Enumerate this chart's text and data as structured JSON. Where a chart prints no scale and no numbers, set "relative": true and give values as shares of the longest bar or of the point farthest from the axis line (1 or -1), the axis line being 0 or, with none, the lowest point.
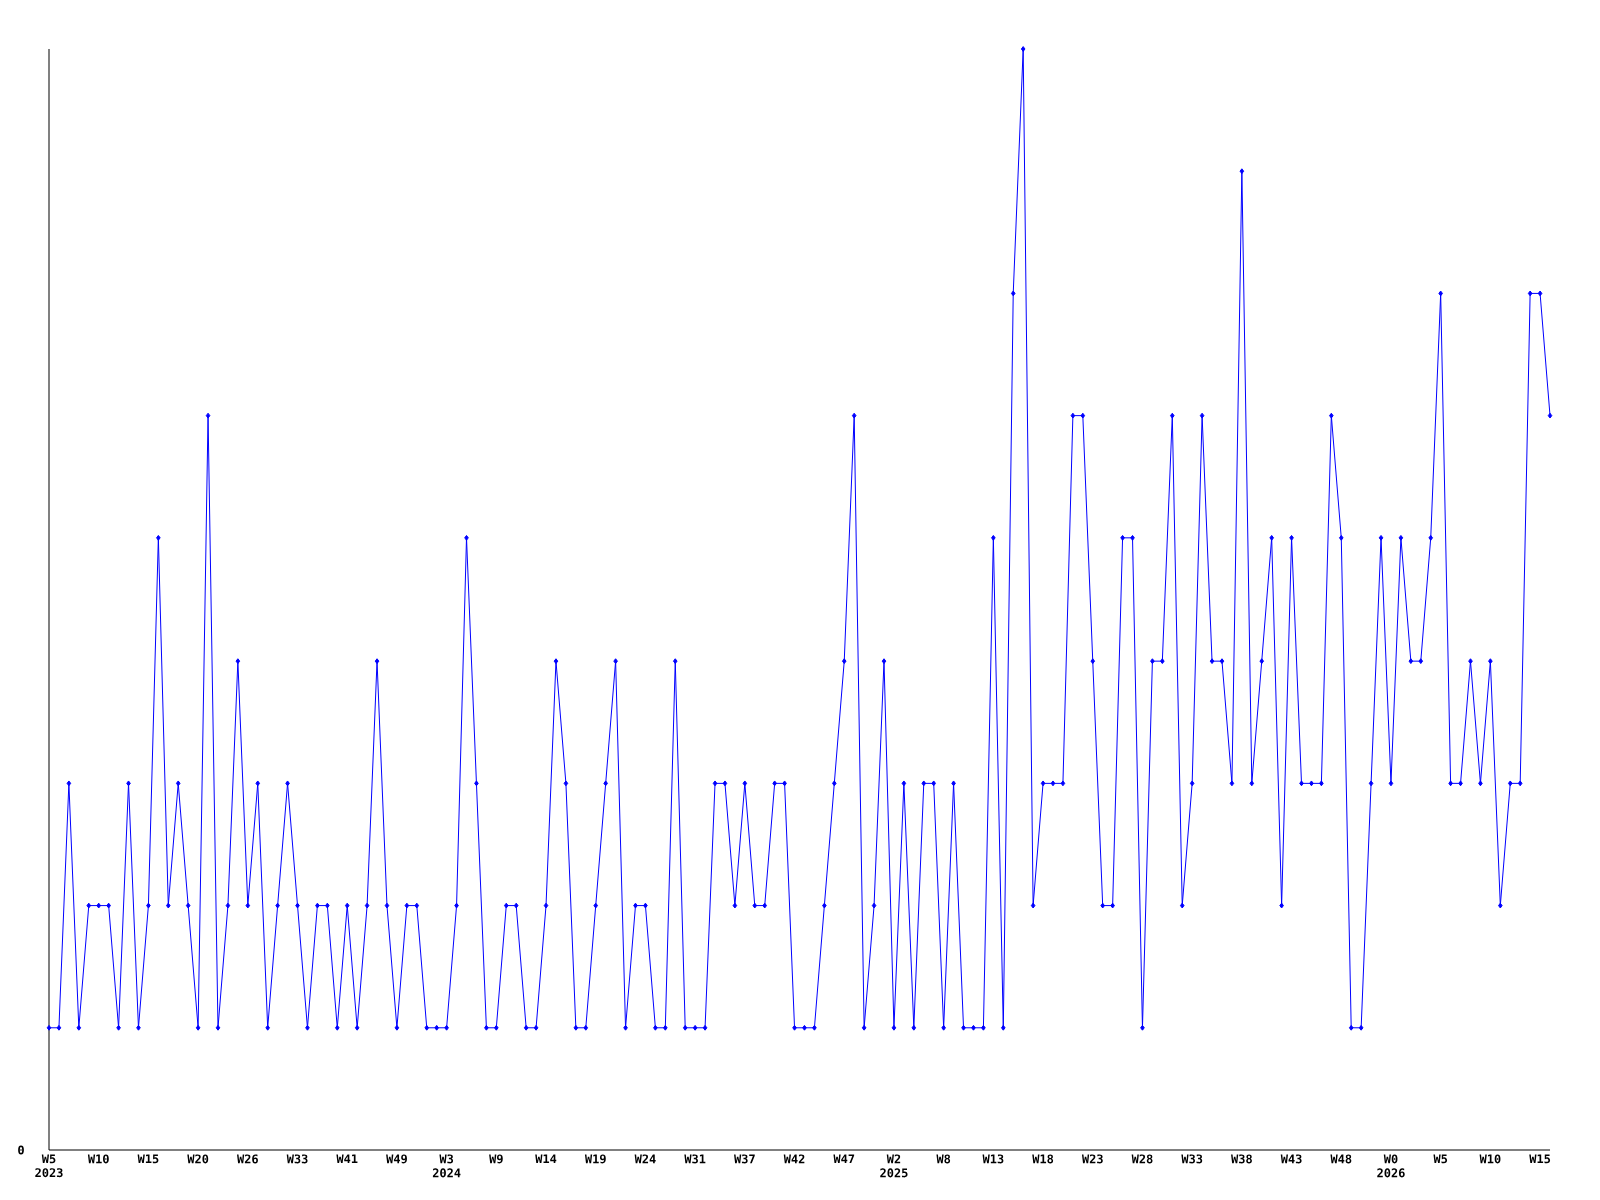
{
  "chart_data": {
    "type": "line",
    "relative": true,
    "color": "#0000ff",
    "marker": "diamond",
    "line_style": "solid",
    "categories": [
      "W5 2023",
      null,
      null,
      null,
      null,
      "W10",
      null,
      null,
      null,
      null,
      "W15",
      null,
      null,
      null,
      null,
      "W20",
      null,
      null,
      null,
      null,
      "W26",
      null,
      null,
      null,
      null,
      "W33",
      null,
      null,
      null,
      null,
      "W41",
      null,
      null,
      null,
      null,
      "W49",
      null,
      null,
      null,
      null,
      "W3 2024",
      null,
      null,
      null,
      null,
      "W9",
      null,
      null,
      null,
      null,
      "W14",
      null,
      null,
      null,
      null,
      "W19",
      null,
      null,
      null,
      null,
      "W24",
      null,
      null,
      null,
      null,
      "W31",
      null,
      null,
      null,
      null,
      "W37",
      null,
      null,
      null,
      null,
      "W42",
      null,
      null,
      null,
      null,
      "W47",
      null,
      null,
      null,
      null,
      "W2 2025",
      null,
      null,
      null,
      null,
      "W8",
      null,
      null,
      null,
      null,
      "W13",
      null,
      null,
      null,
      null,
      "W18",
      null,
      null,
      null,
      null,
      "W23",
      null,
      null,
      null,
      null,
      "W28",
      null,
      null,
      null,
      null,
      "W33",
      null,
      null,
      null,
      null,
      "W38",
      null,
      null,
      null,
      null,
      "W43",
      null,
      null,
      null,
      null,
      "W48",
      null,
      null,
      null,
      null,
      "W0 2026",
      null,
      null,
      null,
      null,
      "W5",
      null,
      null,
      null,
      null,
      "W10",
      null,
      null,
      null,
      null,
      "W15",
      null
    ],
    "values": [
      0.111,
      0.111,
      0.333,
      0.111,
      0.222,
      0.222,
      0.222,
      0.111,
      0.333,
      0.111,
      0.222,
      0.556,
      0.222,
      0.333,
      0.222,
      0.111,
      0.667,
      0.111,
      0.222,
      0.444,
      0.222,
      0.333,
      0.111,
      0.222,
      0.333,
      0.222,
      0.111,
      0.222,
      0.222,
      0.111,
      0.222,
      0.111,
      0.222,
      0.444,
      0.222,
      0.111,
      0.222,
      0.222,
      0.111,
      0.111,
      0.111,
      0.222,
      0.556,
      0.333,
      0.111,
      0.111,
      0.222,
      0.222,
      0.111,
      0.111,
      0.222,
      0.444,
      0.333,
      0.111,
      0.111,
      0.222,
      0.333,
      0.444,
      0.111,
      0.222,
      0.222,
      0.111,
      0.111,
      0.444,
      0.111,
      0.111,
      0.111,
      0.333,
      0.333,
      0.222,
      0.333,
      0.222,
      0.222,
      0.333,
      0.333,
      0.111,
      0.111,
      0.111,
      0.222,
      0.333,
      0.444,
      0.667,
      0.111,
      0.222,
      0.444,
      0.111,
      0.333,
      0.111,
      0.333,
      0.333,
      0.111,
      0.333,
      0.111,
      0.111,
      0.111,
      0.556,
      0.111,
      0.778,
      1,
      0.222,
      0.333,
      0.333,
      0.333,
      0.667,
      0.667,
      0.444,
      0.222,
      0.222,
      0.556,
      0.556,
      0.111,
      0.444,
      0.444,
      0.667,
      0.222,
      0.333,
      0.667,
      0.444,
      0.444,
      0.333,
      0.889,
      0.333,
      0.444,
      0.556,
      0.222,
      0.556,
      0.333,
      0.333,
      0.333,
      0.667,
      0.556,
      0.111,
      0.111,
      0.333,
      0.556,
      0.333,
      0.556,
      0.444,
      0.444,
      0.556,
      0.778,
      0.333,
      0.333,
      0.444,
      0.333,
      0.444,
      0.222,
      0.333,
      0.333,
      0.778,
      0.778,
      0.667
    ],
    "annotations": [
      "0"
    ]
  }
}
